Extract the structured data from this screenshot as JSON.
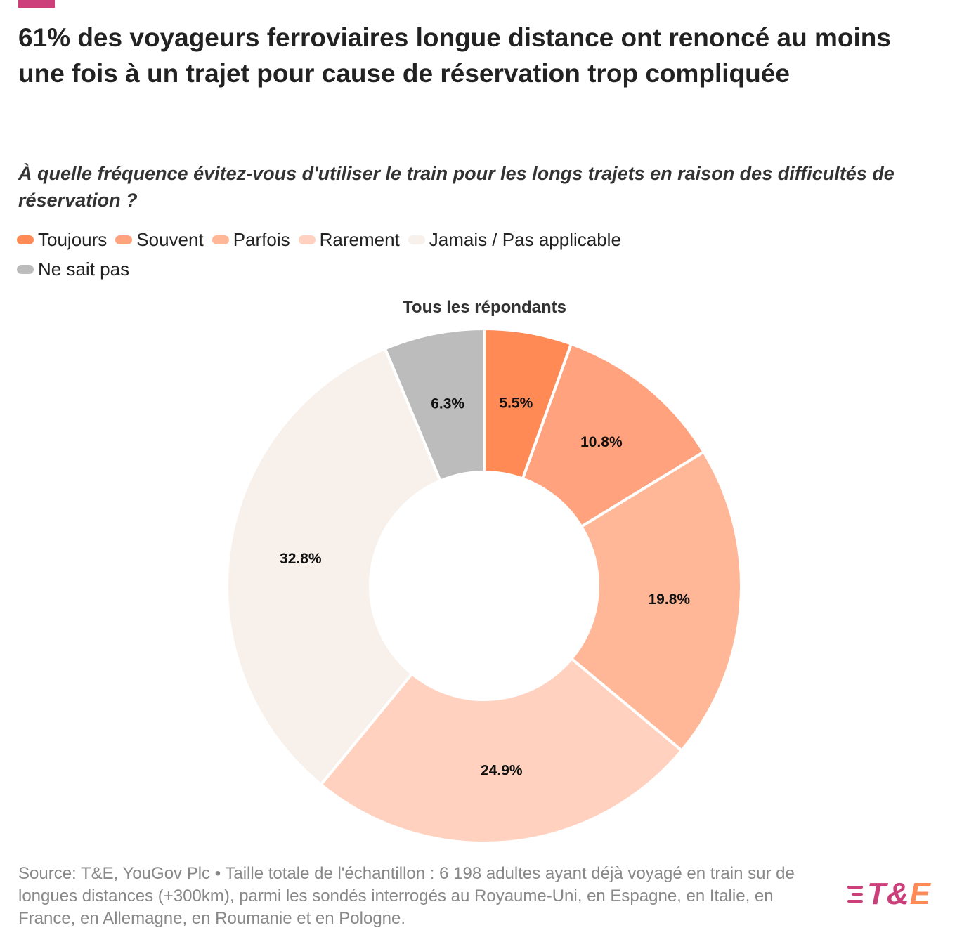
{
  "header": {
    "title": "61% des voyageurs ferroviaires longue distance ont renoncé au moins une fois à un trajet pour cause de réservation trop compliquée",
    "subtitle": "À quelle fréquence évitez-vous d'utiliser le train pour les longs trajets en raison des difficultés de réservation ?"
  },
  "colors": {
    "accent": "#cc3f7a",
    "brand_pink": "#cc3f7a",
    "brand_orange": "#ff8a55",
    "slice_border": "#ffffff",
    "label_text": "#111111"
  },
  "chart_data": {
    "type": "pie",
    "donut": true,
    "title": "Tous les répondants",
    "categories": [
      "Toujours",
      "Souvent",
      "Parfois",
      "Rarement",
      "Jamais / Pas applicable",
      "Ne sait pas"
    ],
    "values": [
      5.5,
      10.8,
      19.8,
      24.9,
      32.8,
      6.3
    ],
    "labels": [
      "5.5%",
      "10.8%",
      "19.8%",
      "24.9%",
      "32.8%",
      "6.3%"
    ],
    "colors": [
      "#ff8a55",
      "#ffa27d",
      "#ffb797",
      "#ffd1be",
      "#f8f0ea",
      "#bcbcbc"
    ],
    "unit": "%",
    "start_angle_deg": 0,
    "direction": "clockwise",
    "legend_position": "top-left"
  },
  "footer": {
    "source": "Source: T&E, YouGov Plc • Taille totale de l'échantillon : 6 198 adultes ayant déjà voyagé en train sur de longues distances (+300km), parmi les sondés interrogés au Royaume-Uni, en Espagne, en Italie, en France, en Allemagne, en Roumanie et en Pologne."
  },
  "brand": {
    "logo_text_part1": "T&",
    "logo_text_part2": "E",
    "icon": "speed-lines-icon"
  }
}
